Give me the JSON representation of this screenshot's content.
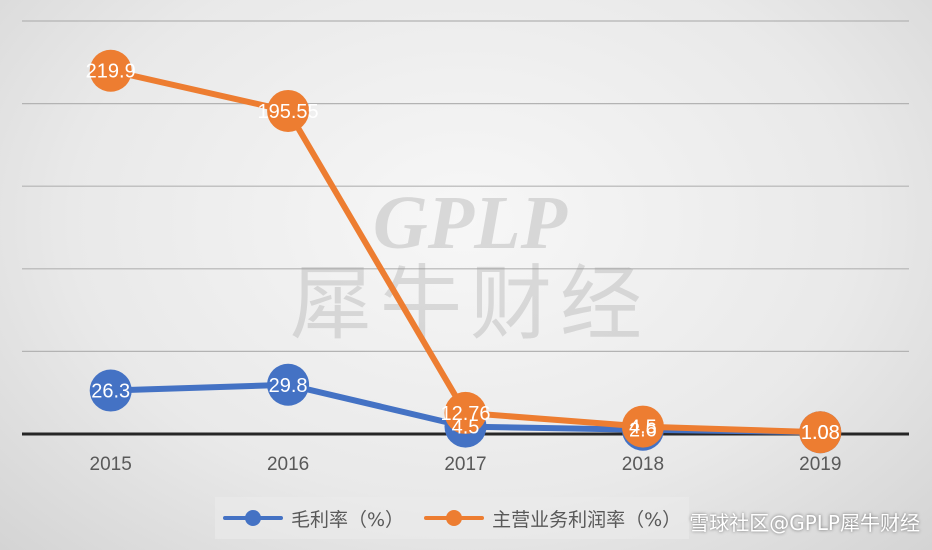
{
  "chart_data": {
    "type": "line",
    "categories": [
      "2015",
      "2016",
      "2017",
      "2018",
      "2019"
    ],
    "series": [
      {
        "name": "毛利率（%）",
        "color": "#4472c4",
        "values": [
          26.3,
          29.8,
          4.5,
          2.6,
          1.08
        ]
      },
      {
        "name": "主营业务利润率（%）",
        "color": "#ed7d31",
        "values": [
          219.9,
          195.55,
          12.76,
          4.5,
          1.08
        ]
      }
    ],
    "data_labels": [
      [
        "26.3",
        "29.8",
        "4.5",
        "2.6",
        "1.08"
      ],
      [
        "219.9",
        "195.55",
        "12.76",
        "4.5",
        "1.08"
      ]
    ],
    "ylim": [
      0,
      250
    ],
    "grid": true,
    "legend_position": "bottom"
  },
  "watermark": {
    "latin": "GPLP",
    "chinese": "犀牛财经"
  },
  "source_text": "雪球社区@GPLP犀牛财经"
}
